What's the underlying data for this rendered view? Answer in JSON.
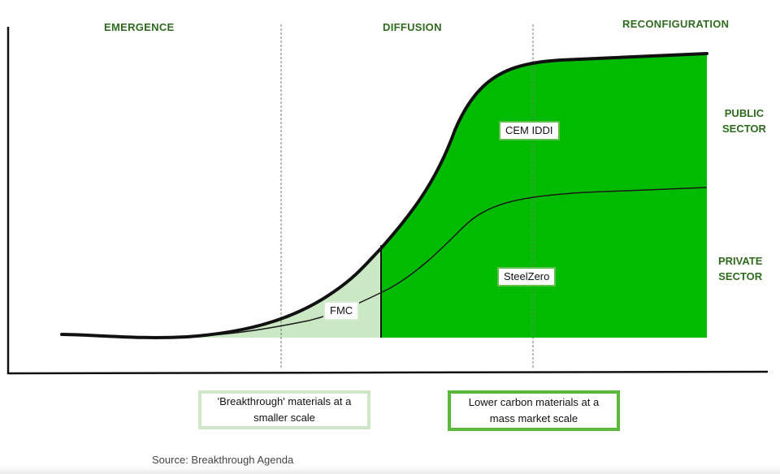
{
  "phases": {
    "emergence": "EMERGENCE",
    "diffusion": "DIFFUSION",
    "reconfiguration": "RECONFIGURATION"
  },
  "sectors": {
    "public_line1": "PUBLIC",
    "public_line2": "SECTOR",
    "private_line1": "PRIVATE",
    "private_line2": "SECTOR"
  },
  "initiatives": {
    "cem_iddi": "CEM IDDI",
    "steelzero": "SteelZero",
    "fmc": "FMC"
  },
  "captions": {
    "breakthrough_line1": "'Breakthrough' materials at a",
    "breakthrough_line2": "smaller scale",
    "lower_carbon_line1": "Lower carbon materials at a",
    "lower_carbon_line2": "mass market scale"
  },
  "source": "Source: Breakthrough Agenda",
  "colors": {
    "dark_green": "#00bb00",
    "light_green": "#c9e8c3",
    "label_green": "#2e6b1f",
    "axis": "#111111"
  }
}
